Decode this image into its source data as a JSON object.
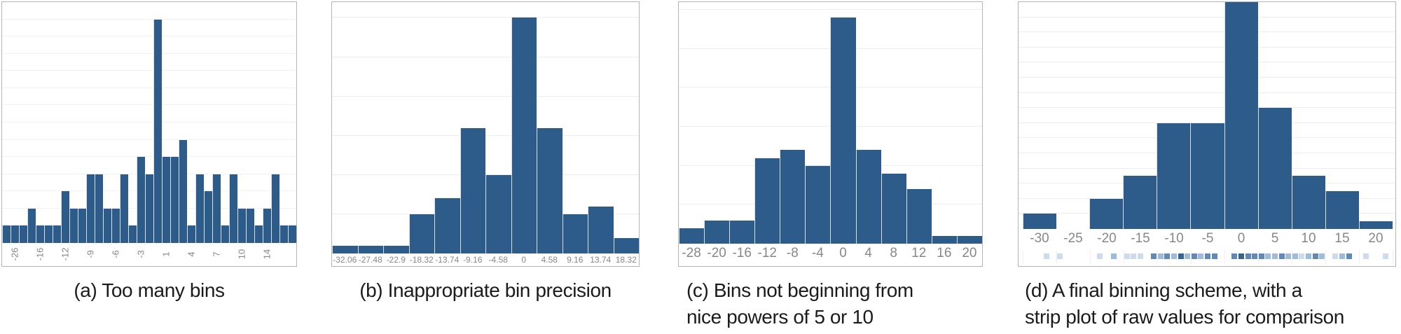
{
  "figure": {
    "background": "#ffffff",
    "bar_color": "#2e5c8a",
    "bar_separator_color": "#d8e1eb",
    "panel_border_color": "#b5b5b5",
    "grid_color": "#ededed",
    "grid_color_faint": "#f2f2f2",
    "tick_color": "#878787",
    "caption_color": "#1b1b1b",
    "strip_shades": {
      "1": "#cedbec",
      "2": "#9fbbda",
      "3": "#6189b8",
      "4": "#37648f"
    }
  },
  "chart_data": [
    {
      "id": "a",
      "type": "bar",
      "caption": "(a) Too many bins",
      "caption_lines": [
        "(a) Too many bins"
      ],
      "values": [
        1,
        1,
        1,
        2,
        1,
        1,
        1,
        3,
        2,
        2,
        4,
        4,
        2,
        2,
        4,
        1,
        5,
        4,
        13,
        5,
        5,
        6,
        1,
        4,
        3,
        4,
        1,
        4,
        2,
        2,
        1,
        2,
        4,
        1,
        1
      ],
      "tick_labels": [
        "",
        "-26",
        "",
        "",
        "-16",
        "",
        "",
        "-12",
        "",
        "",
        "-9",
        "",
        "",
        "-6",
        "",
        "",
        "-3",
        "",
        "",
        "1",
        "",
        "",
        "4",
        "",
        "",
        "7",
        "",
        "",
        "10",
        "",
        "",
        "14",
        "",
        "",
        ""
      ],
      "ylim": [
        0,
        14
      ],
      "grid_step": 1,
      "grid": true,
      "x_ticks_rotated": true
    },
    {
      "id": "b",
      "type": "bar",
      "caption": "(b) Inappropriate bin precision",
      "caption_lines": [
        "(b) Inappropriate bin precision"
      ],
      "categories": [
        "-32.06",
        "-27.48",
        "-22.9",
        "-18.32",
        "-13.74",
        "-9.16",
        "-4.58",
        "0",
        "4.58",
        "9.16",
        "13.74",
        "18.32"
      ],
      "values": [
        1,
        1,
        1,
        5,
        7,
        16,
        10,
        30,
        16,
        5,
        6,
        2
      ],
      "ylim": [
        0,
        32
      ],
      "grid_step": 5,
      "grid": true
    },
    {
      "id": "c",
      "type": "bar",
      "caption": "(c) Bins not beginning from nice powers of 5 or 10",
      "caption_lines": [
        "(c) Bins not beginning from",
        "nice powers of 5 or 10"
      ],
      "categories": [
        "-28",
        "-20",
        "-16",
        "-12",
        "-8",
        "-4",
        "0",
        "4",
        "8",
        "12",
        "16",
        "20"
      ],
      "values": [
        2,
        3,
        3,
        11,
        12,
        10,
        29,
        12,
        9,
        7,
        1,
        1
      ],
      "ylim": [
        0,
        31
      ],
      "grid_step": 5,
      "grid": true
    },
    {
      "id": "d",
      "type": "bar",
      "caption": "(d) A final binning scheme, with a strip plot of raw values for comparison",
      "caption_lines": [
        "(d) A final binning scheme, with a",
        "strip plot of raw values for comparison"
      ],
      "categories": [
        "-30",
        "-25",
        "-20",
        "-15",
        "-10",
        "-5",
        "0",
        "5",
        "10",
        "15",
        "20"
      ],
      "values": [
        2,
        0,
        4,
        7,
        14,
        14,
        30,
        16,
        7,
        5,
        1
      ],
      "ylim": [
        0,
        30
      ],
      "grid_step": 2,
      "grid": true,
      "strip_domain": [
        -32.5,
        22.5
      ],
      "strip": [
        {
          "v": -29,
          "s": 1
        },
        {
          "v": -27,
          "s": 1
        },
        {
          "v": -21,
          "s": 1
        },
        {
          "v": -19,
          "s": 2
        },
        {
          "v": -17,
          "s": 1
        },
        {
          "v": -16,
          "s": 1
        },
        {
          "v": -15,
          "s": 1
        },
        {
          "v": -13,
          "s": 3
        },
        {
          "v": -12,
          "s": 2
        },
        {
          "v": -11,
          "s": 3
        },
        {
          "v": -10,
          "s": 2
        },
        {
          "v": -9,
          "s": 4
        },
        {
          "v": -8,
          "s": 2
        },
        {
          "v": -7,
          "s": 3
        },
        {
          "v": -6,
          "s": 2
        },
        {
          "v": -5,
          "s": 3
        },
        {
          "v": -4,
          "s": 3
        },
        {
          "v": -1,
          "s": 3
        },
        {
          "v": 0,
          "s": 4
        },
        {
          "v": 1,
          "s": 3
        },
        {
          "v": 2,
          "s": 3
        },
        {
          "v": 3,
          "s": 3
        },
        {
          "v": 4,
          "s": 2
        },
        {
          "v": 5,
          "s": 2
        },
        {
          "v": 6,
          "s": 3
        },
        {
          "v": 7,
          "s": 2
        },
        {
          "v": 8,
          "s": 2
        },
        {
          "v": 9,
          "s": 1
        },
        {
          "v": 10,
          "s": 2
        },
        {
          "v": 11,
          "s": 3
        },
        {
          "v": 12,
          "s": 2
        },
        {
          "v": 14,
          "s": 1
        },
        {
          "v": 15,
          "s": 2
        },
        {
          "v": 16,
          "s": 3
        },
        {
          "v": 18.5,
          "s": 1
        },
        {
          "v": 21.5,
          "s": 1
        }
      ]
    }
  ]
}
